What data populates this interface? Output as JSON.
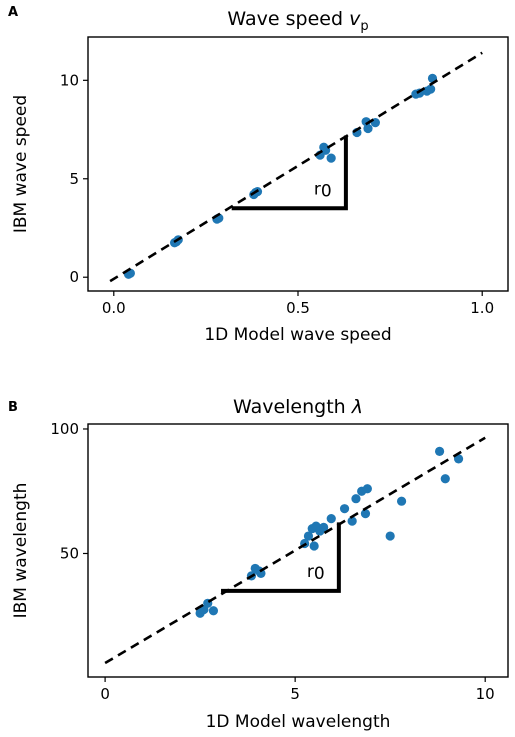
{
  "figure": {
    "panels": [
      {
        "letter": "A"
      },
      {
        "letter": "B"
      }
    ]
  },
  "chart_data": [
    {
      "type": "scatter",
      "panel": "A",
      "title": "Wave speed",
      "title_symbol": "v",
      "title_subscript": "p",
      "xlabel": "1D Model wave speed",
      "ylabel": "IBM wave speed",
      "xlim": [
        -0.07,
        1.07
      ],
      "ylim": [
        -0.7,
        12.2
      ],
      "xticks": [
        0.0,
        0.5,
        1.0
      ],
      "xtick_labels": [
        "0.0",
        "0.5",
        "1.0"
      ],
      "yticks": [
        0,
        5,
        10
      ],
      "ytick_labels": [
        "0",
        "5",
        "10"
      ],
      "grid": false,
      "points_color": "#1f77b4",
      "points": [
        [
          0.04,
          0.15
        ],
        [
          0.045,
          0.2
        ],
        [
          0.17,
          1.8
        ],
        [
          0.175,
          1.9
        ],
        [
          0.165,
          1.75
        ],
        [
          0.28,
          2.95
        ],
        [
          0.285,
          3.0
        ],
        [
          0.38,
          4.2
        ],
        [
          0.39,
          4.35
        ],
        [
          0.385,
          4.3
        ],
        [
          0.56,
          6.2
        ],
        [
          0.57,
          6.6
        ],
        [
          0.575,
          6.45
        ],
        [
          0.59,
          6.05
        ],
        [
          0.66,
          7.35
        ],
        [
          0.69,
          7.55
        ],
        [
          0.685,
          7.9
        ],
        [
          0.71,
          7.85
        ],
        [
          0.82,
          9.3
        ],
        [
          0.83,
          9.35
        ],
        [
          0.85,
          9.45
        ],
        [
          0.86,
          9.55
        ],
        [
          0.865,
          10.1
        ]
      ],
      "fit_line": {
        "x": [
          -0.01,
          1.0
        ],
        "y": [
          -0.2,
          11.4
        ],
        "style": "dashed",
        "color": "#000000"
      },
      "slope_triangle": {
        "x0": 0.32,
        "x1": 0.63,
        "y0": 3.5,
        "y1": 7.2,
        "label": "r",
        "label_subscript": "0"
      }
    },
    {
      "type": "scatter",
      "panel": "B",
      "title": "Wavelength",
      "title_symbol": "λ",
      "xlabel": "1D Model wavelength",
      "ylabel": "IBM wavelength",
      "xlim": [
        -0.45,
        10.6
      ],
      "ylim": [
        0.4,
        102
      ],
      "xticks": [
        0,
        5,
        10
      ],
      "xtick_labels": [
        "0",
        "5",
        "10"
      ],
      "yticks": [
        50,
        100
      ],
      "ytick_labels": [
        "50",
        "100"
      ],
      "grid": false,
      "points_color": "#1f77b4",
      "points": [
        [
          2.5,
          26
        ],
        [
          2.6,
          27.5
        ],
        [
          2.7,
          30
        ],
        [
          2.85,
          27
        ],
        [
          3.85,
          41
        ],
        [
          3.95,
          44
        ],
        [
          4.05,
          43
        ],
        [
          4.1,
          42
        ],
        [
          5.25,
          54
        ],
        [
          5.35,
          57
        ],
        [
          5.45,
          60
        ],
        [
          5.55,
          61
        ],
        [
          5.65,
          59
        ],
        [
          5.75,
          60.5
        ],
        [
          5.5,
          53
        ],
        [
          5.95,
          64
        ],
        [
          6.3,
          68
        ],
        [
          6.5,
          63
        ],
        [
          6.6,
          72
        ],
        [
          6.75,
          75
        ],
        [
          6.9,
          76
        ],
        [
          6.85,
          66
        ],
        [
          7.5,
          57
        ],
        [
          7.8,
          71
        ],
        [
          8.8,
          91
        ],
        [
          8.95,
          80
        ],
        [
          9.3,
          88
        ]
      ],
      "fit_line": {
        "x": [
          0,
          10.0
        ],
        "y": [
          6,
          96.5
        ],
        "style": "dashed",
        "color": "#000000"
      },
      "slope_triangle": {
        "x0": 3.05,
        "x1": 6.15,
        "y0": 35,
        "y1": 62.5,
        "label": "r",
        "label_subscript": "0"
      }
    }
  ]
}
